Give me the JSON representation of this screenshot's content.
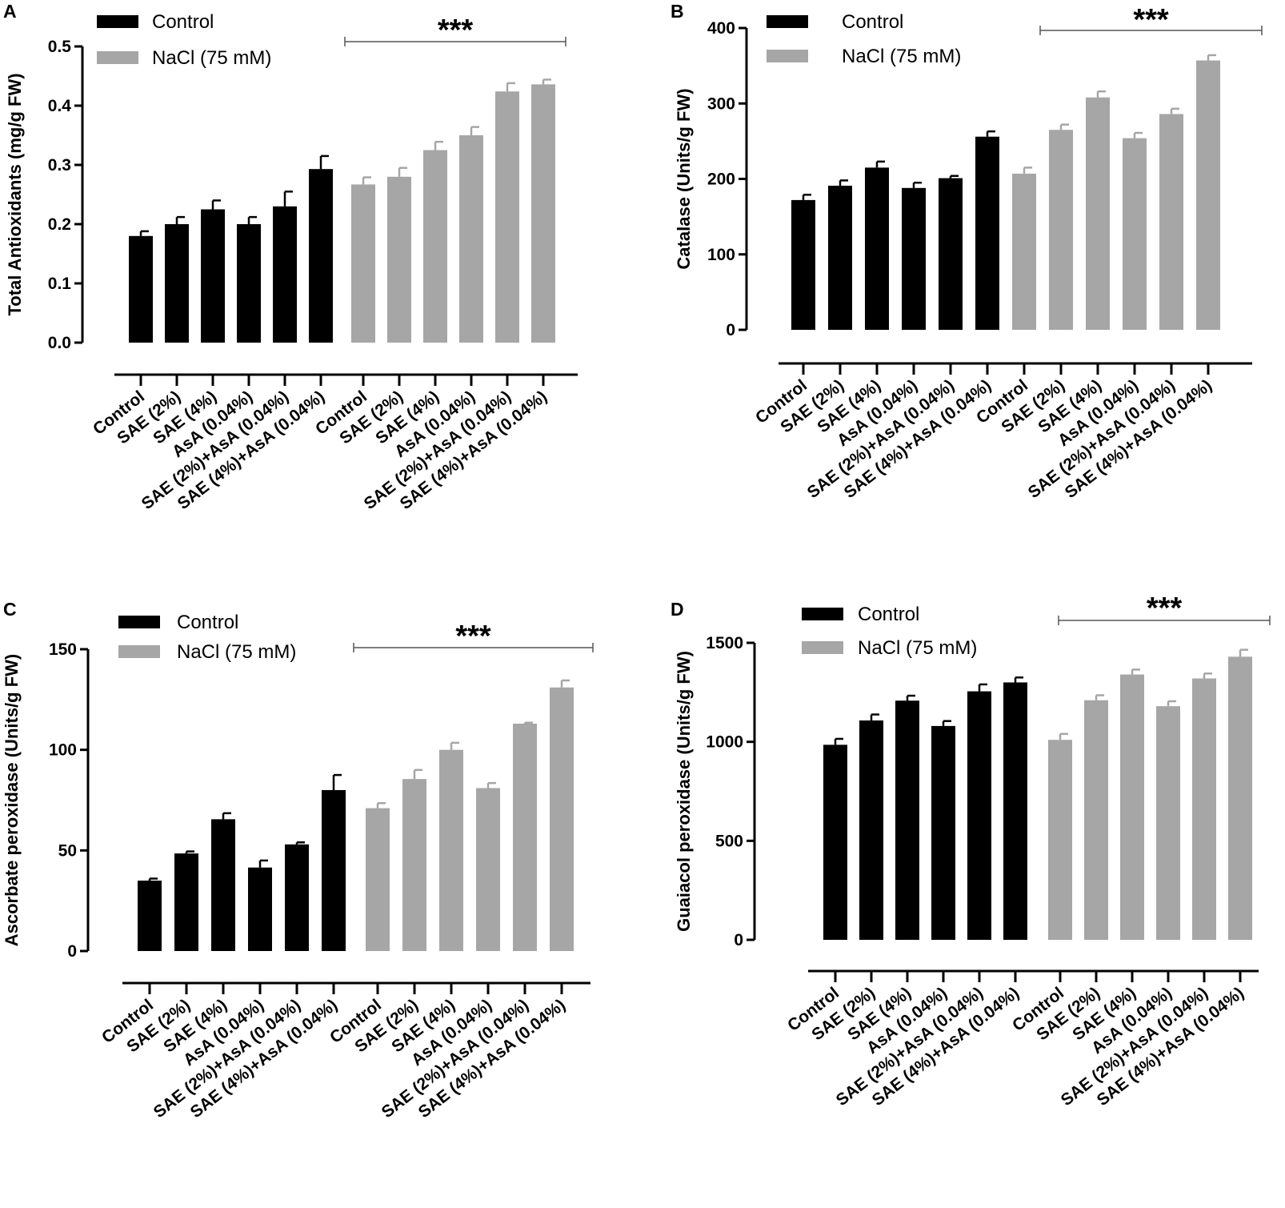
{
  "legend": {
    "control_label": "Control",
    "nacl_label": "NaCl (75 mM)"
  },
  "colors": {
    "control": "#000000",
    "nacl": "#a6a6a6"
  },
  "significance": "***",
  "chart_data": [
    {
      "panel": "A",
      "type": "bar",
      "ylabel": "Total Antioxidants (mg/g FW)",
      "ylim": [
        0,
        0.5
      ],
      "yticks": [
        "0.0",
        "0.1",
        "0.2",
        "0.3",
        "0.4",
        "0.5"
      ],
      "categories": [
        "Control",
        "SAE (2%)",
        "SAE (4%)",
        "AsA (0.04%)",
        "SAE (2%)+AsA (0.04%)",
        "SAE (4%)+AsA (0.04%)"
      ],
      "series": [
        {
          "name": "Control",
          "values": [
            0.18,
            0.2,
            0.225,
            0.2,
            0.23,
            0.293
          ],
          "errors": [
            0.008,
            0.012,
            0.015,
            0.012,
            0.025,
            0.022
          ]
        },
        {
          "name": "NaCl (75 mM)",
          "values": [
            0.267,
            0.28,
            0.325,
            0.35,
            0.424,
            0.436
          ],
          "errors": [
            0.012,
            0.015,
            0.014,
            0.014,
            0.014,
            0.008
          ]
        }
      ]
    },
    {
      "panel": "B",
      "type": "bar",
      "ylabel": "Catalase (Units/g FW)",
      "ylim": [
        0,
        400
      ],
      "yticks": [
        "0",
        "100",
        "200",
        "300",
        "400"
      ],
      "categories": [
        "Control",
        "SAE (2%)",
        "SAE (4%)",
        "AsA (0.04%)",
        "SAE (2%)+AsA (0.04%)",
        "SAE (4%)+AsA (0.04%)"
      ],
      "series": [
        {
          "name": "Control",
          "values": [
            172,
            191,
            215,
            188,
            201,
            256
          ],
          "errors": [
            7,
            7,
            8,
            7,
            3,
            7
          ]
        },
        {
          "name": "NaCl (75 mM)",
          "values": [
            207,
            265,
            308,
            254,
            286,
            357
          ],
          "errors": [
            8,
            7,
            8,
            7,
            7,
            7
          ]
        }
      ]
    },
    {
      "panel": "C",
      "type": "bar",
      "ylabel": "Ascorbate peroxidase (Units/g FW)",
      "ylim": [
        0,
        150
      ],
      "yticks": [
        "0",
        "50",
        "100",
        "150"
      ],
      "categories": [
        "Control",
        "SAE (2%)",
        "SAE (4%)",
        "AsA (0.04%)",
        "SAE (2%)+AsA (0.04%)",
        "SAE (4%)+AsA (0.04%)"
      ],
      "series": [
        {
          "name": "Control",
          "values": [
            35,
            48.5,
            65.5,
            41.5,
            53,
            80
          ],
          "errors": [
            1,
            1,
            3,
            3.5,
            1,
            7.5
          ]
        },
        {
          "name": "NaCl (75 mM)",
          "values": [
            71,
            85.5,
            100,
            81,
            113,
            131
          ],
          "errors": [
            2.5,
            4.5,
            3.5,
            2.5,
            0.5,
            3.5
          ]
        }
      ]
    },
    {
      "panel": "D",
      "type": "bar",
      "ylabel": "Guaiacol peroxidase (Units/g FW)",
      "ylim": [
        0,
        1500
      ],
      "yticks": [
        "0",
        "500",
        "1000",
        "1500"
      ],
      "categories": [
        "Control",
        "SAE (2%)",
        "SAE (4%)",
        "AsA (0.04%)",
        "SAE (2%)+AsA (0.04%)",
        "SAE (4%)+AsA (0.04%)"
      ],
      "series": [
        {
          "name": "Control",
          "values": [
            985,
            1108,
            1208,
            1080,
            1255,
            1300
          ],
          "errors": [
            30,
            30,
            25,
            25,
            35,
            25
          ]
        },
        {
          "name": "NaCl (75 mM)",
          "values": [
            1010,
            1210,
            1340,
            1180,
            1320,
            1430
          ],
          "errors": [
            30,
            25,
            25,
            25,
            25,
            35
          ]
        }
      ]
    }
  ]
}
